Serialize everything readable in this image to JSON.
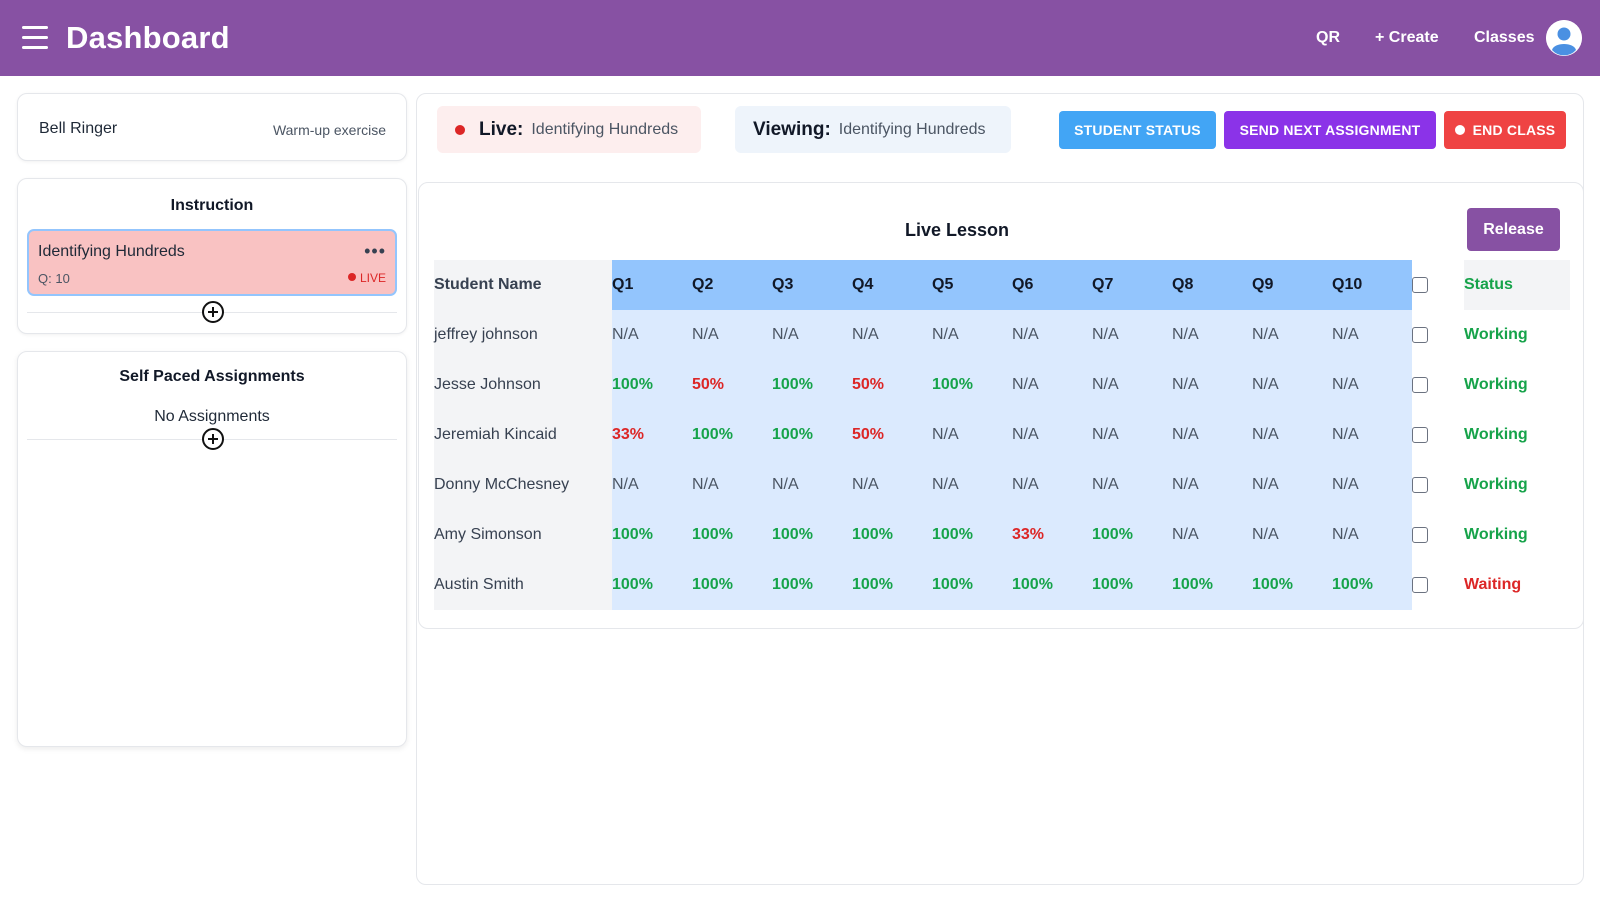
{
  "header": {
    "title": "Dashboard",
    "nav": {
      "qr": "QR",
      "create": "+ Create",
      "classes": "Classes"
    }
  },
  "sidebar": {
    "bell_ringer": {
      "title": "Bell Ringer",
      "subtitle": "Warm-up exercise"
    },
    "instruction": {
      "title": "Instruction",
      "item": {
        "name": "Identifying Hundreds",
        "questions": "Q: 10",
        "badge": "LIVE",
        "menu": "•••"
      }
    },
    "self_paced": {
      "title": "Self Paced Assignments",
      "empty": "No Assignments"
    }
  },
  "status_bar": {
    "live_label": "Live:",
    "live_value": "Identifying Hundreds",
    "viewing_label": "Viewing:",
    "viewing_value": "Identifying Hundreds"
  },
  "actions": {
    "student_status": "STUDENT STATUS",
    "send_next": "SEND NEXT ASSIGNMENT",
    "end_class": "END CLASS"
  },
  "lesson": {
    "title": "Live Lesson",
    "release": "Release",
    "columns": {
      "name": "Student Name",
      "q": [
        "Q1",
        "Q2",
        "Q3",
        "Q4",
        "Q5",
        "Q6",
        "Q7",
        "Q8",
        "Q9",
        "Q10"
      ],
      "status": "Status"
    },
    "rows": [
      {
        "name": "jeffrey johnson",
        "scores": [
          "N/A",
          "N/A",
          "N/A",
          "N/A",
          "N/A",
          "N/A",
          "N/A",
          "N/A",
          "N/A",
          "N/A"
        ],
        "status": "Working"
      },
      {
        "name": "Jesse Johnson",
        "scores": [
          "100%",
          "50%",
          "100%",
          "50%",
          "100%",
          "N/A",
          "N/A",
          "N/A",
          "N/A",
          "N/A"
        ],
        "status": "Working"
      },
      {
        "name": "Jeremiah Kincaid",
        "scores": [
          "33%",
          "100%",
          "100%",
          "50%",
          "N/A",
          "N/A",
          "N/A",
          "N/A",
          "N/A",
          "N/A"
        ],
        "status": "Working"
      },
      {
        "name": "Donny McChesney",
        "scores": [
          "N/A",
          "N/A",
          "N/A",
          "N/A",
          "N/A",
          "N/A",
          "N/A",
          "N/A",
          "N/A",
          "N/A"
        ],
        "status": "Working"
      },
      {
        "name": "Amy Simonson",
        "scores": [
          "100%",
          "100%",
          "100%",
          "100%",
          "100%",
          "33%",
          "100%",
          "N/A",
          "N/A",
          "N/A"
        ],
        "status": "Working"
      },
      {
        "name": "Austin Smith",
        "scores": [
          "100%",
          "100%",
          "100%",
          "100%",
          "100%",
          "100%",
          "100%",
          "100%",
          "100%",
          "100%"
        ],
        "status": "Waiting"
      }
    ]
  },
  "colors": {
    "header": "#8751a3",
    "good": "#16a34a",
    "bad": "#dc2626",
    "question_header": "#93c5fd",
    "question_cell": "#dbeafe"
  },
  "icons": [
    "hamburger-icon",
    "user-avatar-icon",
    "more-dots-icon",
    "add-circle-icon",
    "live-dot-icon"
  ]
}
